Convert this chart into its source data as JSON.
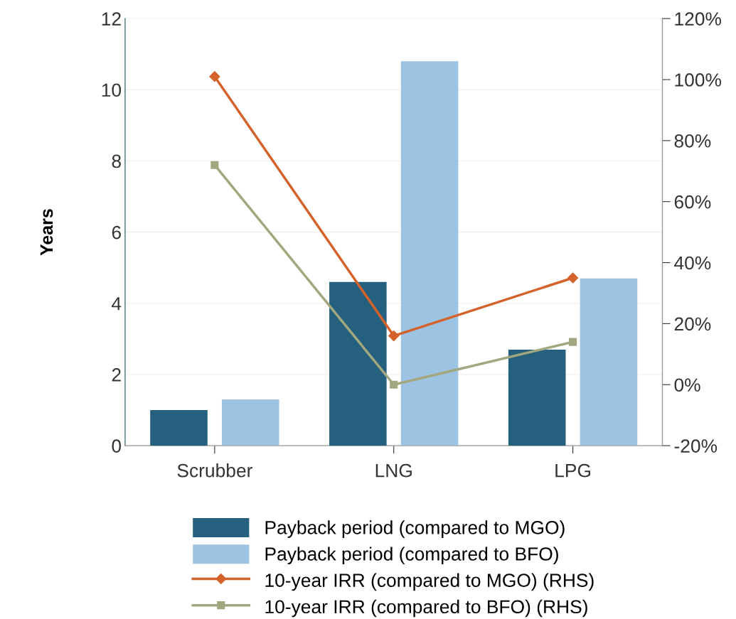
{
  "chart_data": {
    "type": "bar",
    "ylabel": "Years",
    "categories": [
      "Scrubber",
      "LNG",
      "LPG"
    ],
    "series": [
      {
        "name": "Payback period (compared to MGO)",
        "color": "#26607f",
        "values": [
          1.0,
          4.6,
          2.7
        ]
      },
      {
        "name": "Payback period (compared to BFO)",
        "color": "#9dc3e2",
        "values": [
          1.3,
          10.8,
          4.7
        ]
      },
      {
        "name": "10-year IRR (compared to MGO) (RHS)",
        "type": "line",
        "axis": "y2",
        "marker": "diamond",
        "color": "#d4622b",
        "values": [
          101,
          16,
          35
        ]
      },
      {
        "name": "10-year IRR (compared to BFO) (RHS)",
        "type": "line",
        "axis": "y2",
        "marker": "square",
        "color": "#a3a77f",
        "values": [
          72,
          0,
          14
        ]
      }
    ],
    "ylim": [
      0,
      12
    ],
    "yticks": [
      0,
      2,
      4,
      6,
      8,
      10,
      12
    ],
    "y2lim": [
      -20,
      120
    ],
    "y2ticks": [
      {
        "value": -20,
        "label": "-20%"
      },
      {
        "value": 0,
        "label": "0%"
      },
      {
        "value": 20,
        "label": "20%"
      },
      {
        "value": 40,
        "label": "40%"
      },
      {
        "value": 60,
        "label": "60%"
      },
      {
        "value": 80,
        "label": "80%"
      },
      {
        "value": 100,
        "label": "100%"
      },
      {
        "value": 120,
        "label": "120%"
      }
    ],
    "grid": "y",
    "legend": "bottom",
    "line_style": "solid"
  }
}
